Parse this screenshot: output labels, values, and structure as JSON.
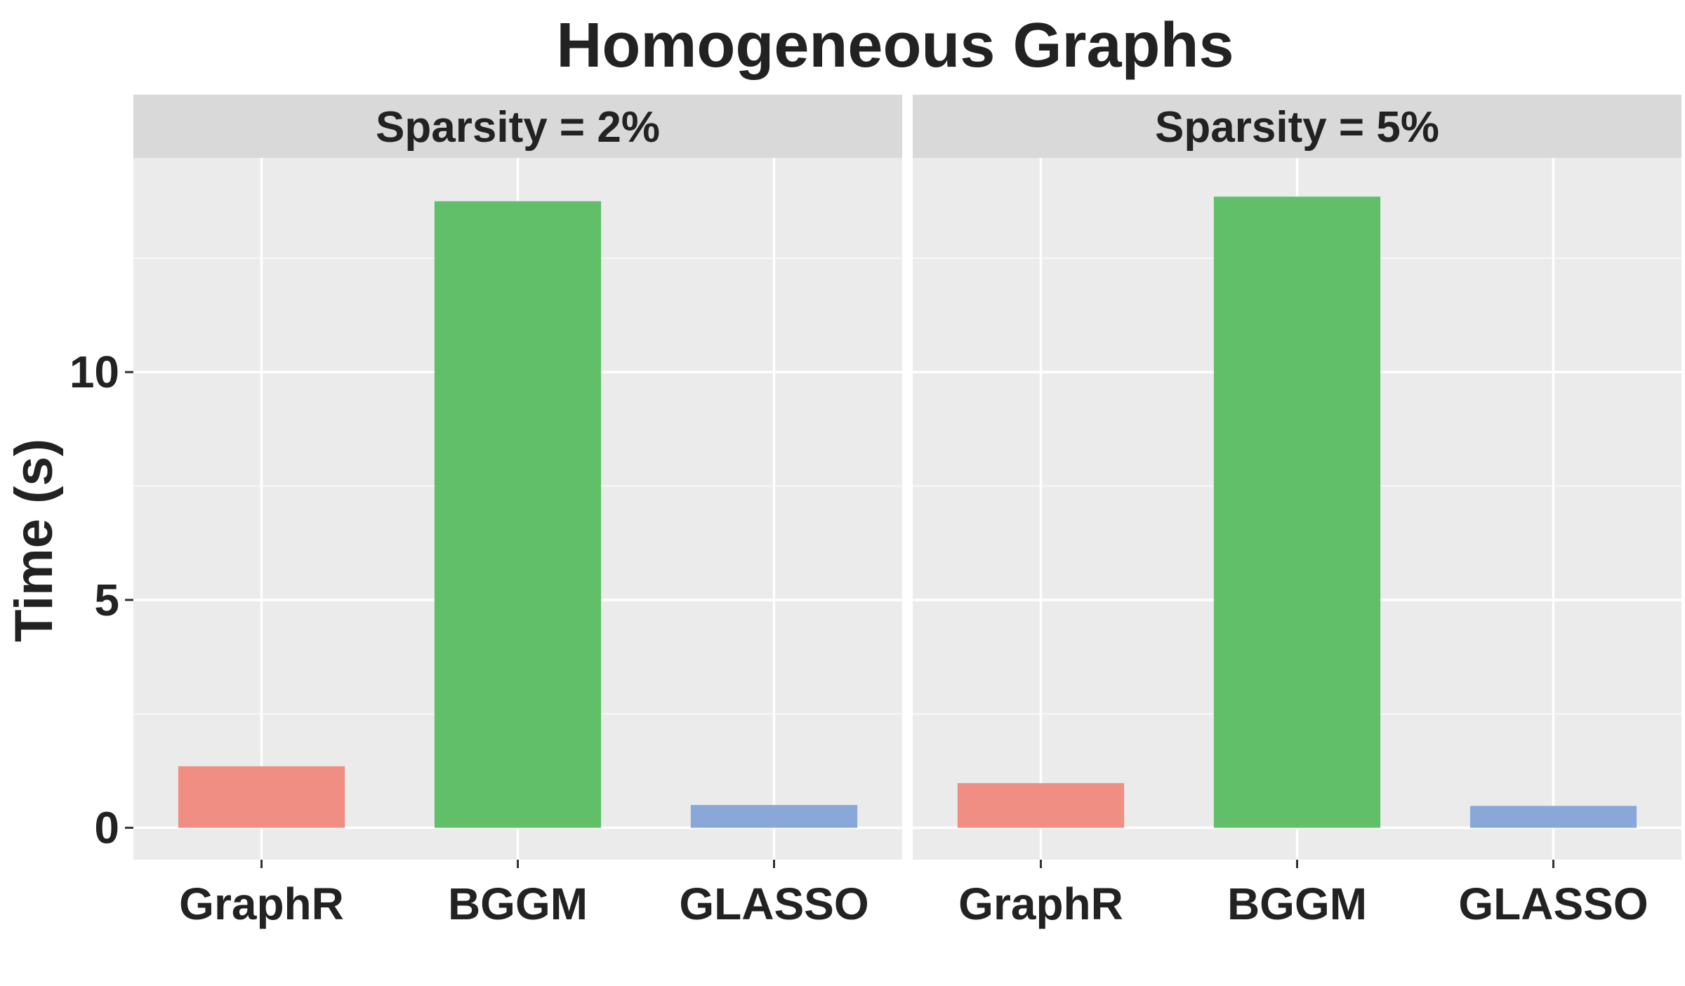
{
  "chart_data": {
    "type": "bar",
    "title": "Homogeneous Graphs",
    "ylabel": "Time (s)",
    "xlabel": "",
    "ylim": [
      -0.7,
      14.7
    ],
    "yticks": [
      0,
      5,
      10
    ],
    "grid": true,
    "legend": "none",
    "categories": [
      "GraphR",
      "BGGM",
      "GLASSO"
    ],
    "colors": {
      "GraphR": "#F08A80",
      "BGGM": "#5CBD65",
      "GLASSO": "#86A4D8"
    },
    "panels": [
      {
        "label": "Sparsity = 2%",
        "values": [
          1.35,
          13.75,
          0.5
        ]
      },
      {
        "label": "Sparsity = 5%",
        "values": [
          0.98,
          13.85,
          0.48
        ]
      }
    ]
  }
}
